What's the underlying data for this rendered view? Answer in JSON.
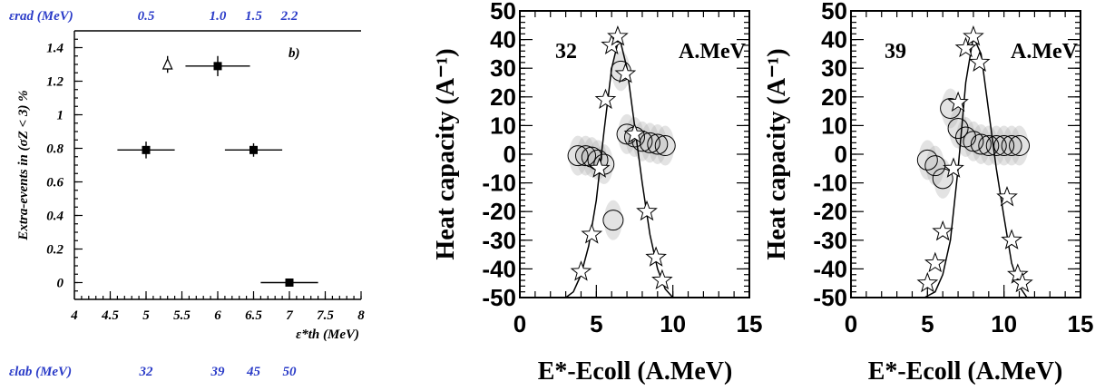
{
  "chart_data": [
    {
      "type": "scatter",
      "panel_tag": "b)",
      "ylabel": "Extra-events in (σZ < 3) %",
      "xlabel": "ε*th (MeV)",
      "xlim": [
        4,
        8
      ],
      "ylim": [
        -0.1,
        1.5
      ],
      "xticks": [
        "4",
        "4.5",
        "5",
        "5.5",
        "6",
        "6.5",
        "7",
        "7.5",
        "8"
      ],
      "yticks": [
        "0",
        "0.2",
        "0.4",
        "0.6",
        "0.8",
        "1",
        "1.2",
        "1.4"
      ],
      "top_axis_label": "εrad (MeV)",
      "top_axis_values": [
        {
          "x": 5.0,
          "text": "0.5"
        },
        {
          "x": 6.0,
          "text": "1.0"
        },
        {
          "x": 6.5,
          "text": "1.5"
        },
        {
          "x": 7.0,
          "text": "2.2"
        }
      ],
      "bottom_axis_label": "εlab (MeV)",
      "bottom_axis_values": [
        {
          "x": 5.0,
          "text": "32"
        },
        {
          "x": 6.0,
          "text": "39"
        },
        {
          "x": 6.5,
          "text": "45"
        },
        {
          "x": 7.0,
          "text": "50"
        }
      ],
      "series": [
        {
          "marker": "filled-square",
          "points": [
            {
              "x": 5.0,
              "y": 0.79,
              "xerr": 0.4,
              "yerr": 0.05
            },
            {
              "x": 6.0,
              "y": 1.29,
              "xerr": 0.45,
              "yerr": 0.06
            },
            {
              "x": 6.5,
              "y": 0.79,
              "xerr": 0.4,
              "yerr": 0.04
            },
            {
              "x": 7.0,
              "y": 0.0,
              "xerr": 0.4,
              "yerr": 0.0
            }
          ]
        },
        {
          "marker": "open-triangle",
          "points": [
            {
              "x": 5.3,
              "y": 1.3,
              "xerr": 0.0,
              "yerr": 0.05
            }
          ]
        }
      ]
    },
    {
      "type": "scatter",
      "annotation_left": "32",
      "annotation_right": "A.MeV",
      "ylabel": "Heat capacity (A⁻¹)",
      "xlabel": "E*-Ecoll (A.MeV)",
      "xlim": [
        0,
        15
      ],
      "ylim": [
        -50,
        50
      ],
      "xticks": [
        "0",
        "5",
        "10",
        "15"
      ],
      "yticks": [
        "-50",
        "-40",
        "-30",
        "-20",
        "-10",
        "0",
        "10",
        "20",
        "30",
        "40",
        "50"
      ],
      "circles": [
        [
          3.8,
          -0.5
        ],
        [
          4.3,
          -0.5
        ],
        [
          4.7,
          -1.0
        ],
        [
          5.1,
          -2.0
        ],
        [
          5.5,
          -3.5
        ],
        [
          6.1,
          -23.0
        ],
        [
          6.6,
          29.0
        ],
        [
          7.0,
          7.0
        ],
        [
          7.5,
          6.0
        ],
        [
          8.0,
          4.5
        ],
        [
          8.5,
          4.0
        ],
        [
          9.0,
          3.5
        ],
        [
          9.5,
          3.0
        ]
      ],
      "stars": [
        [
          4.0,
          -41.0
        ],
        [
          4.7,
          -28.0
        ],
        [
          5.2,
          -5.0
        ],
        [
          5.6,
          19.0
        ],
        [
          6.0,
          38.0
        ],
        [
          6.4,
          41.0
        ],
        [
          6.9,
          28.0
        ],
        [
          7.5,
          7.0
        ],
        [
          8.3,
          -20.0
        ],
        [
          8.9,
          -36.0
        ],
        [
          9.3,
          -44.0
        ]
      ],
      "curve": [
        [
          3.0,
          -50
        ],
        [
          3.5,
          -48
        ],
        [
          4.0,
          -42
        ],
        [
          4.5,
          -32
        ],
        [
          5.0,
          -16
        ],
        [
          5.5,
          8
        ],
        [
          6.0,
          30
        ],
        [
          6.5,
          41
        ],
        [
          7.0,
          30
        ],
        [
          7.5,
          10
        ],
        [
          8.0,
          -10
        ],
        [
          8.5,
          -28
        ],
        [
          9.0,
          -40
        ],
        [
          9.5,
          -47
        ],
        [
          10.0,
          -50
        ]
      ]
    },
    {
      "type": "scatter",
      "annotation_left": "39",
      "annotation_right": "A.MeV",
      "ylabel": "Heat capacity (A⁻¹)",
      "xlabel": "E*-Ecoll (A.MeV)",
      "xlim": [
        0,
        15
      ],
      "ylim": [
        -50,
        50
      ],
      "xticks": [
        "0",
        "5",
        "10",
        "15"
      ],
      "yticks": [
        "-50",
        "-40",
        "-30",
        "-20",
        "-10",
        "0",
        "10",
        "20",
        "30",
        "40",
        "50"
      ],
      "circles": [
        [
          5.0,
          -2.0
        ],
        [
          5.5,
          -4.0
        ],
        [
          6.0,
          -8.5
        ],
        [
          6.5,
          16.0
        ],
        [
          7.0,
          9.0
        ],
        [
          7.5,
          6.0
        ],
        [
          8.0,
          4.5
        ],
        [
          8.5,
          3.5
        ],
        [
          9.0,
          3.0
        ],
        [
          9.5,
          3.0
        ],
        [
          10.0,
          3.0
        ],
        [
          10.5,
          3.0
        ],
        [
          11.0,
          3.0
        ]
      ],
      "stars": [
        [
          5.0,
          -45.0
        ],
        [
          5.5,
          -38.0
        ],
        [
          6.0,
          -27.0
        ],
        [
          6.7,
          -5.0
        ],
        [
          7.0,
          18.0
        ],
        [
          7.5,
          37.0
        ],
        [
          8.0,
          41.0
        ],
        [
          8.4,
          32.0
        ],
        [
          10.2,
          -15.0
        ],
        [
          10.5,
          -30.0
        ],
        [
          10.9,
          -42.0
        ],
        [
          11.2,
          -45.0
        ]
      ],
      "curve": [
        [
          4.8,
          -50
        ],
        [
          5.5,
          -48
        ],
        [
          6.0,
          -42
        ],
        [
          6.5,
          -30
        ],
        [
          7.0,
          -5
        ],
        [
          7.5,
          25
        ],
        [
          8.0,
          41
        ],
        [
          8.5,
          35
        ],
        [
          9.0,
          15
        ],
        [
          9.5,
          -5
        ],
        [
          10.0,
          -22
        ],
        [
          10.5,
          -38
        ],
        [
          11.0,
          -46
        ],
        [
          11.5,
          -50
        ]
      ]
    }
  ]
}
